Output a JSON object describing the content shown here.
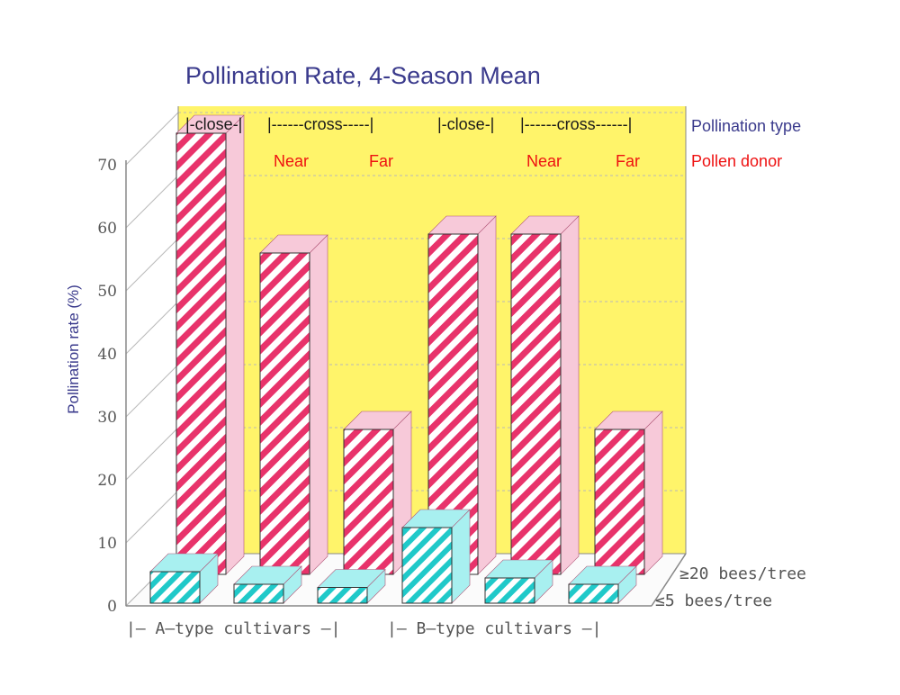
{
  "chart_data": {
    "type": "bar",
    "title": "Pollination Rate, 4-Season Mean",
    "ylabel": "Pollination rate (%)",
    "ylim": [
      0,
      70
    ],
    "yticks": [
      0,
      10,
      20,
      30,
      40,
      50,
      60,
      70
    ],
    "grid": true,
    "categories": [
      "A close",
      "A cross near",
      "A cross far",
      "B close",
      "B cross near",
      "B cross far"
    ],
    "series": [
      {
        "name": "≥20 bees/tree",
        "values": [
          70,
          51,
          23,
          54,
          54,
          23
        ]
      },
      {
        "name": "≤5 bees/tree",
        "values": [
          5,
          3,
          2.5,
          12,
          4,
          3
        ]
      }
    ],
    "header_row1": {
      "label": "Pollination type",
      "segments": [
        "|-close-|",
        "|------cross-----|",
        "|-close-|",
        "|------cross------|"
      ]
    },
    "header_row2": {
      "label": "Pollen donor",
      "labels": [
        "Near",
        "Far",
        "Near",
        "Far"
      ]
    },
    "group_labels": [
      "|– A–type cultivars –|",
      "|– B–type cultivars –|"
    ],
    "colors": {
      "back_bar": "#e8336b",
      "back_bar_side": "#f7c9d9",
      "front_bar": "#20c9c9",
      "front_bar_side": "#a8f0f0",
      "panel": "#fff46a",
      "title": "#3a3a8c",
      "donor_text": "#ee1111"
    }
  }
}
